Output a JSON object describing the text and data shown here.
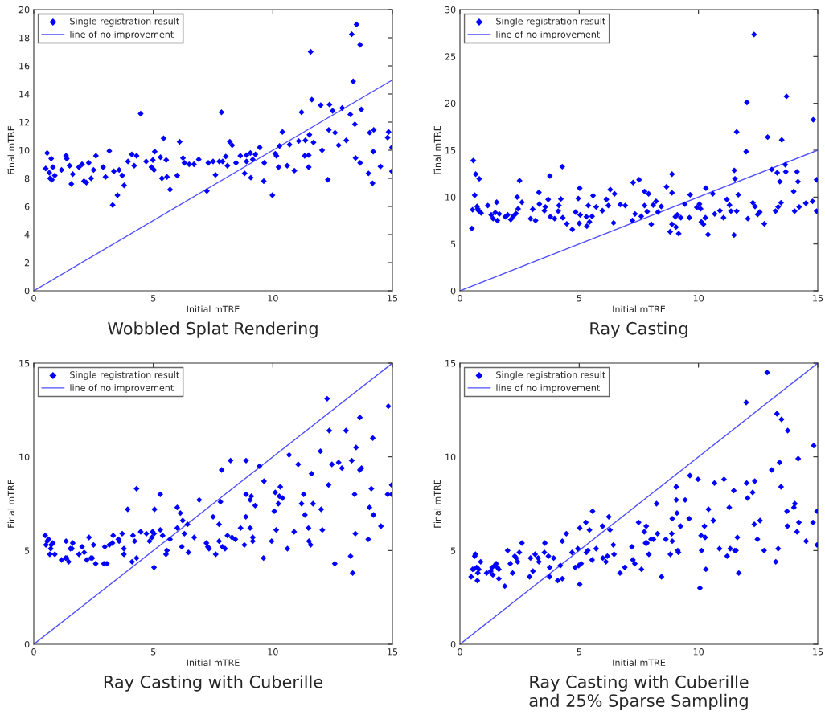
{
  "chart_data": [
    {
      "type": "scatter",
      "title": "Wobbled Splat Rendering",
      "xlabel": "Initial mTRE",
      "ylabel": "Final mTRE",
      "xlim": [
        0,
        15
      ],
      "ylim": [
        0,
        20
      ],
      "xticks": [
        0,
        5,
        10,
        15
      ],
      "yticks": [
        0,
        2,
        4,
        6,
        8,
        10,
        12,
        14,
        16,
        18,
        20
      ],
      "grid": false,
      "legend": "top left",
      "series": [
        {
          "name": "Single registration result",
          "marker": "diamond",
          "color": "#0000ff",
          "x": [
            0.5,
            0.56,
            0.65,
            0.68,
            0.73,
            0.76,
            0.8,
            0.88,
            1.16,
            1.35,
            1.38,
            1.5,
            1.57,
            1.63,
            1.89,
            2.02,
            2.1,
            2.2,
            2.3,
            2.4,
            2.5,
            2.6,
            2.9,
            3.0,
            3.16,
            3.3,
            3.35,
            3.5,
            3.57,
            3.7,
            3.78,
            3.94,
            4.1,
            4.2,
            4.3,
            4.47,
            4.7,
            4.92,
            4.98,
            5.03,
            5.06,
            5.3,
            5.36,
            5.43,
            5.54,
            5.57,
            5.7,
            6.0,
            6.1,
            6.24,
            6.3,
            6.5,
            6.7,
            6.9,
            7.24,
            7.3,
            7.5,
            7.6,
            7.76,
            7.85,
            7.9,
            8.03,
            8.1,
            8.2,
            8.3,
            8.46,
            8.64,
            8.82,
            8.9,
            8.9,
            9.06,
            9.08,
            9.16,
            9.27,
            9.45,
            9.64,
            9.62,
            9.98,
            10.1,
            10.15,
            10.24,
            10.28,
            10.4,
            10.6,
            10.7,
            10.9,
            11.08,
            11.2,
            11.33,
            11.36,
            11.5,
            11.5,
            11.53,
            11.58,
            11.63,
            11.7,
            12.0,
            12.06,
            12.3,
            12.34,
            12.37,
            12.5,
            12.6,
            12.75,
            12.9,
            13.07,
            13.24,
            13.3,
            13.36,
            13.43,
            13.46,
            13.5,
            13.65,
            13.65,
            13.7,
            14.0,
            14.05,
            14.17,
            14.2,
            14.22,
            14.5,
            14.8,
            14.84,
            14.98,
            14.98
          ],
          "values": [
            8.7,
            9.8,
            8.4,
            8.0,
            9.4,
            7.9,
            8.8,
            8.2,
            8.6,
            9.6,
            9.4,
            8.9,
            7.6,
            8.3,
            8.8,
            9.0,
            7.8,
            7.7,
            9.1,
            8.0,
            8.6,
            9.6,
            8.8,
            8.1,
            9.95,
            6.1,
            8.5,
            6.8,
            8.6,
            8.2,
            7.5,
            9.2,
            9.7,
            8.9,
            9.6,
            12.6,
            9.2,
            8.8,
            9.3,
            8.6,
            9.9,
            9.5,
            8.0,
            10.85,
            9.3,
            8.1,
            7.2,
            8.2,
            10.6,
            9.45,
            9.1,
            9.0,
            9.0,
            9.35,
            7.1,
            9.1,
            9.2,
            8.25,
            9.2,
            12.7,
            9.2,
            9.55,
            8.9,
            10.6,
            10.35,
            9.1,
            9.6,
            8.35,
            9.2,
            9.65,
            9.8,
            8.05,
            9.35,
            9.7,
            10.2,
            9.1,
            7.8,
            6.8,
            9.75,
            9.6,
            8.8,
            10.3,
            11.3,
            8.9,
            10.4,
            8.55,
            10.65,
            12.7,
            9.6,
            10.7,
            9.65,
            8.8,
            11.1,
            17.0,
            13.6,
            10.55,
            13.2,
            10.0,
            7.9,
            11.45,
            13.25,
            12.8,
            11.25,
            10.35,
            13.0,
            10.7,
            12.55,
            18.25,
            14.9,
            11.85,
            9.45,
            18.95,
            17.5,
            9.1,
            12.9,
            8.35,
            11.25,
            7.65,
            9.9,
            11.45,
            8.85,
            10.9,
            11.3,
            10.2,
            8.5
          ]
        },
        {
          "name": "line of no improvement",
          "type": "line",
          "line_style": "solid",
          "color": "#4f4fff",
          "x": [
            0,
            15
          ],
          "values": [
            0,
            15
          ]
        }
      ]
    },
    {
      "type": "scatter",
      "title": "Ray Casting",
      "xlabel": "Initial mTRE",
      "ylabel": "Final mTRE",
      "xlim": [
        0,
        15
      ],
      "ylim": [
        0,
        30
      ],
      "xticks": [
        0,
        5,
        10,
        15
      ],
      "yticks": [
        0,
        5,
        10,
        15,
        20,
        25,
        30
      ],
      "grid": false,
      "legend": "top left",
      "series": [
        {
          "name": "Single registration result",
          "marker": "diamond",
          "color": "#0000ff",
          "x": [
            0.5,
            0.53,
            0.56,
            0.62,
            0.66,
            0.72,
            0.75,
            0.81,
            0.78,
            0.89,
            1.17,
            1.31,
            1.39,
            1.48,
            1.54,
            1.57,
            1.65,
            1.9,
            2.0,
            2.13,
            2.23,
            2.35,
            2.4,
            2.44,
            2.5,
            2.6,
            2.96,
            3.05,
            3.17,
            3.31,
            3.33,
            3.54,
            3.58,
            3.7,
            3.77,
            3.79,
            3.97,
            4.12,
            4.15,
            4.23,
            4.29,
            4.31,
            4.48,
            4.71,
            4.85,
            4.96,
            5.02,
            5.0,
            5.04,
            5.3,
            5.32,
            5.38,
            5.43,
            5.54,
            5.58,
            5.71,
            5.97,
            6.14,
            6.22,
            6.3,
            6.44,
            6.48,
            6.72,
            6.93,
            7.23,
            7.26,
            7.34,
            7.51,
            7.6,
            7.74,
            7.74,
            7.85,
            7.91,
            8.02,
            8.1,
            8.22,
            8.3,
            8.44,
            8.66,
            8.81,
            8.89,
            8.89,
            8.89,
            9.03,
            9.06,
            9.11,
            9.17,
            9.26,
            9.43,
            9.62,
            9.65,
            9.93,
            10.04,
            10.09,
            10.12,
            10.21,
            10.29,
            10.31,
            10.4,
            10.6,
            10.68,
            10.9,
            11.05,
            11.19,
            11.3,
            11.36,
            11.49,
            11.5,
            11.53,
            11.6,
            11.6,
            11.67,
            12.0,
            12.03,
            12.07,
            12.28,
            12.33,
            12.37,
            12.48,
            12.57,
            12.76,
            12.9,
            13.07,
            13.23,
            13.3,
            13.34,
            13.41,
            13.46,
            13.49,
            13.64,
            13.66,
            13.69,
            13.99,
            14.03,
            14.13,
            14.17,
            14.22,
            14.5,
            14.78,
            14.81,
            14.95,
            14.95
          ],
          "values": [
            6.65,
            8.65,
            13.9,
            10.2,
            12.45,
            9.0,
            8.75,
            11.95,
            8.55,
            8.3,
            9.1,
            8.1,
            7.7,
            8.35,
            9.45,
            7.5,
            8.2,
            7.9,
            8.1,
            7.6,
            7.95,
            8.25,
            10.0,
            8.75,
            11.75,
            9.45,
            7.7,
            8.7,
            7.5,
            10.5,
            9.25,
            8.55,
            8.95,
            9.75,
            12.25,
            7.9,
            7.7,
            8.5,
            9.1,
            9.8,
            13.25,
            7.8,
            7.15,
            6.55,
            8.4,
            9.85,
            10.95,
            7.2,
            8.1,
            7.9,
            6.9,
            9.1,
            7.35,
            7.95,
            10.15,
            8.95,
            8.55,
            9.75,
            9.1,
            10.8,
            7.25,
            10.35,
            9.2,
            9.1,
            7.5,
            11.55,
            8.2,
            11.85,
            7.95,
            9.1,
            10.6,
            8.45,
            10.35,
            7.1,
            9.15,
            9.55,
            8.4,
            9.0,
            11.1,
            6.3,
            12.45,
            10.45,
            7.1,
            7.9,
            6.8,
            8.1,
            6.1,
            7.8,
            9.25,
            7.8,
            10.25,
            8.9,
            9.25,
            8.75,
            7.35,
            7.1,
            7.8,
            10.95,
            6.0,
            10.35,
            8.2,
            8.55,
            7.8,
            9.75,
            9.15,
            8.5,
            5.95,
            12.85,
            11.95,
            16.95,
            8.5,
            10.25,
            14.85,
            20.1,
            7.7,
            9.4,
            27.35,
            9.0,
            8.15,
            8.4,
            7.15,
            16.4,
            12.95,
            8.5,
            12.6,
            8.95,
            11.65,
            9.4,
            16.1,
            13.45,
            12.7,
            20.75,
            10.6,
            8.5,
            12.7,
            11.65,
            8.95,
            9.35,
            9.55,
            18.25,
            11.85,
            8.5
          ]
        },
        {
          "name": "line of no improvement",
          "type": "line",
          "line_style": "solid",
          "color": "#4f4fff",
          "x": [
            0,
            15
          ],
          "values": [
            0,
            15
          ]
        }
      ]
    },
    {
      "type": "scatter",
      "title": "Ray Casting with Cuberille",
      "xlabel": "Initial mTRE",
      "ylabel": "Final mTRE",
      "xlim": [
        0,
        15
      ],
      "ylim": [
        0,
        15
      ],
      "xticks": [
        0,
        5,
        10,
        15
      ],
      "yticks": [
        0,
        5,
        10,
        15
      ],
      "grid": false,
      "legend": "top left",
      "series": [
        {
          "name": "Single registration result",
          "marker": "diamond",
          "color": "#0000ff",
          "x": [
            0.48,
            0.51,
            0.56,
            0.62,
            0.67,
            0.71,
            0.73,
            0.8,
            0.88,
            1.16,
            1.33,
            1.35,
            1.38,
            1.46,
            1.53,
            1.6,
            1.63,
            1.89,
            2.02,
            2.11,
            2.22,
            2.31,
            2.39,
            2.45,
            2.5,
            2.59,
            2.93,
            2.97,
            3.06,
            3.16,
            3.29,
            3.32,
            3.54,
            3.57,
            3.7,
            3.77,
            3.77,
            3.93,
            4.11,
            4.15,
            4.22,
            4.3,
            4.3,
            4.47,
            4.71,
            4.84,
            4.94,
            4.97,
            5.03,
            5.05,
            5.03,
            5.29,
            5.29,
            5.39,
            5.53,
            5.57,
            5.7,
            6.0,
            6.0,
            6.13,
            6.19,
            6.23,
            6.3,
            6.43,
            6.47,
            6.71,
            6.92,
            7.22,
            7.28,
            7.33,
            7.5,
            7.61,
            7.75,
            7.75,
            7.81,
            7.86,
            7.89,
            8.0,
            8.1,
            8.23,
            8.29,
            8.43,
            8.65,
            8.81,
            8.87,
            8.88,
            8.88,
            9.05,
            9.05,
            9.1,
            9.16,
            9.16,
            9.26,
            9.44,
            9.63,
            9.61,
            9.95,
            10.06,
            10.1,
            10.14,
            10.23,
            10.27,
            10.31,
            10.4,
            10.61,
            10.68,
            10.89,
            11.06,
            11.2,
            11.29,
            11.34,
            11.49,
            11.51,
            11.58,
            11.62,
            11.68,
            11.99,
            12.02,
            12.07,
            12.27,
            12.33,
            12.36,
            12.47,
            12.59,
            12.75,
            12.89,
            13.06,
            13.25,
            13.3,
            13.34,
            13.42,
            13.45,
            13.48,
            13.64,
            13.64,
            13.71,
            13.99,
            14.04,
            14.12,
            14.18,
            14.21,
            14.52,
            14.8,
            14.83,
            14.97,
            14.97
          ],
          "values": [
            5.8,
            5.3,
            5.5,
            5.6,
            4.8,
            5.1,
            5.3,
            5.4,
            4.8,
            4.5,
            4.6,
            5.5,
            4.6,
            4.4,
            5.1,
            5.1,
            5.4,
            4.8,
            5.2,
            4.9,
            4.5,
            5.7,
            4.6,
            4.6,
            5.3,
            4.3,
            4.3,
            5.2,
            4.3,
            5.3,
            5.4,
            5.8,
            5.6,
            5.5,
            5.9,
            5.1,
            4.8,
            7.2,
            4.4,
            5.8,
            5.5,
            4.6,
            8.3,
            6.0,
            5.9,
            5.5,
            5.7,
            6.0,
            4.1,
            7.2,
            5.9,
            8.0,
            6.1,
            5.8,
            4.8,
            5.0,
            5.6,
            7.3,
            6.2,
            7.0,
            5.2,
            6.6,
            5.9,
            6.4,
            4.9,
            5.7,
            7.7,
            5.4,
            5.2,
            5.1,
            6.8,
            4.8,
            6.4,
            5.5,
            7.6,
            9.3,
            5.2,
            5.1,
            5.8,
            9.8,
            5.7,
            5.6,
            6.2,
            5.3,
            6.8,
            8.0,
            9.8,
            6.2,
            7.7,
            7.9,
            5.7,
            5.5,
            7.4,
            9.5,
            8.7,
            4.6,
            5.5,
            7.1,
            8.1,
            6.1,
            7.5,
            7.9,
            8.4,
            7.8,
            5.1,
            10.1,
            6.0,
            9.6,
            7.5,
            8.0,
            6.9,
            6.2,
            5.5,
            5.3,
            9.1,
            7.5,
            10.3,
            7.2,
            6.1,
            13.1,
            8.5,
            11.4,
            9.6,
            4.3,
            9.7,
            9.4,
            11.4,
            4.7,
            9.8,
            3.8,
            8.0,
            5.9,
            10.5,
            12.1,
            9.3,
            9.4,
            5.6,
            7.3,
            8.3,
            11.0,
            6.9,
            6.3,
            8.0,
            12.7,
            8.5,
            8.0
          ]
        },
        {
          "name": "line of no improvement",
          "type": "line",
          "line_style": "solid",
          "color": "#4f4fff",
          "x": [
            0,
            15
          ],
          "values": [
            0,
            15
          ]
        }
      ]
    },
    {
      "type": "scatter",
      "title": "Ray Casting with Cuberille\nand 25% Sparse Sampling",
      "xlabel": "Initial mTRE",
      "ylabel": "Final mTRE",
      "xlim": [
        0,
        15
      ],
      "ylim": [
        0,
        15
      ],
      "xticks": [
        0,
        5,
        10,
        15
      ],
      "yticks": [
        0,
        5,
        10,
        15
      ],
      "grid": false,
      "legend": "top left",
      "series": [
        {
          "name": "Single registration result",
          "marker": "diamond",
          "color": "#0000ff",
          "x": [
            0.47,
            0.53,
            0.58,
            0.62,
            0.65,
            0.7,
            0.73,
            0.75,
            0.79,
            0.87,
            1.12,
            1.29,
            1.35,
            1.38,
            1.46,
            1.52,
            1.57,
            1.63,
            1.63,
            1.88,
            2.0,
            2.11,
            2.21,
            2.3,
            2.36,
            2.42,
            2.49,
            2.6,
            2.92,
            2.96,
            3.06,
            3.15,
            3.28,
            3.31,
            3.54,
            3.56,
            3.71,
            3.76,
            3.76,
            3.93,
            4.1,
            4.21,
            4.29,
            4.29,
            4.46,
            4.7,
            4.83,
            4.94,
            4.98,
            5.02,
            5.02,
            5.08,
            5.28,
            5.3,
            5.36,
            5.43,
            5.54,
            5.56,
            5.71,
            5.98,
            5.99,
            6.12,
            6.18,
            6.24,
            6.29,
            6.43,
            6.46,
            6.71,
            6.91,
            7.21,
            7.25,
            7.33,
            7.49,
            7.61,
            7.73,
            7.81,
            7.78,
            7.84,
            7.92,
            8.01,
            8.11,
            8.28,
            8.24,
            8.45,
            8.63,
            8.82,
            8.88,
            8.9,
            8.9,
            9.07,
            9.07,
            9.1,
            9.13,
            9.16,
            9.25,
            9.44,
            9.61,
            9.64,
            9.98,
            10.06,
            10.11,
            10.13,
            10.25,
            10.28,
            10.31,
            10.42,
            10.62,
            10.67,
            10.88,
            11.07,
            11.2,
            11.29,
            11.33,
            11.48,
            11.52,
            11.57,
            11.63,
            11.69,
            12.0,
            12.02,
            12.06,
            12.27,
            12.34,
            12.36,
            12.47,
            12.58,
            12.75,
            12.88,
            13.07,
            13.24,
            13.29,
            13.34,
            13.4,
            13.46,
            13.48,
            13.71,
            13.73,
            13.74,
            14.0,
            14.04,
            14.13,
            14.18,
            14.21,
            14.51,
            14.8,
            14.83,
            14.97,
            14.97
          ],
          "values": [
            3.6,
            4.0,
            4.0,
            4.7,
            4.8,
            4.1,
            3.4,
            3.8,
            4.0,
            4.4,
            3.8,
            3.9,
            4.1,
            3.7,
            4.2,
            4.3,
            4.1,
            3.5,
            4.0,
            3.1,
            5.0,
            4.3,
            3.8,
            4.7,
            4.6,
            4.4,
            4.9,
            5.4,
            3.6,
            4.6,
            3.9,
            4.8,
            4.6,
            4.4,
            4.9,
            5.4,
            4.7,
            4.1,
            3.6,
            4.6,
            3.4,
            4.2,
            3.5,
            5.5,
            5.9,
            4.9,
            4.1,
            5.1,
            4.2,
            6.2,
            3.2,
            4.3,
            6.5,
            4.9,
            5.0,
            6.1,
            4.5,
            7.1,
            5.1,
            6.3,
            4.6,
            4.4,
            4.7,
            6.8,
            6.1,
            5.3,
            4.8,
            3.8,
            4.1,
            5.2,
            4.5,
            4.3,
            6.5,
            4.0,
            6.0,
            6.3,
            5.4,
            5.4,
            4.8,
            5.6,
            5.6,
            5.9,
            7.5,
            3.6,
            5.6,
            4.8,
            5.9,
            5.5,
            6.7,
            8.4,
            7.7,
            7.0,
            5.0,
            4.9,
            6.3,
            7.7,
            6.7,
            9.0,
            8.8,
            3.0,
            5.8,
            5.0,
            6.3,
            5.7,
            4.0,
            7.2,
            6.6,
            8.6,
            5.1,
            8.8,
            4.7,
            7.3,
            5.1,
            8.2,
            5.0,
            5.0,
            5.7,
            3.8,
            12.9,
            8.6,
            7.8,
            8.1,
            6.4,
            8.7,
            5.6,
            6.6,
            5.0,
            14.5,
            9.3,
            4.4,
            12.3,
            5.1,
            9.7,
            8.4,
            12.0,
            7.1,
            6.3,
            11.4,
            7.3,
            7.5,
            6.0,
            9.9,
            6.5,
            5.5,
            6.5,
            10.6,
            7.1,
            5.3
          ]
        },
        {
          "name": "line of no improvement",
          "type": "line",
          "line_style": "solid",
          "color": "#4f4fff",
          "x": [
            0,
            15
          ],
          "values": [
            0,
            15
          ]
        }
      ]
    }
  ]
}
